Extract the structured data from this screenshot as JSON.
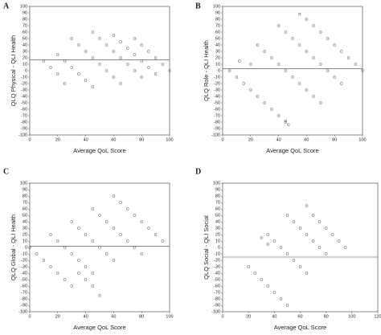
{
  "chart_data": [
    {
      "type": "scatter",
      "panel": "A",
      "x_label": "Average QoL Score",
      "y_label": "QLQ Physical - QLI Health",
      "color": "#777777",
      "reference_line": 17,
      "xlim": [
        0,
        100
      ],
      "ylim": [
        -100,
        100
      ],
      "xticks": [
        0,
        20,
        40,
        60,
        80,
        100
      ],
      "yticks": [
        -100,
        -90,
        -80,
        -70,
        -60,
        -50,
        -40,
        -30,
        -20,
        -10,
        0,
        10,
        20,
        30,
        40,
        50,
        60,
        70,
        80,
        90,
        100
      ],
      "x": [
        75,
        80,
        85,
        90,
        95,
        100,
        60,
        65,
        70,
        75,
        80,
        85,
        90,
        45,
        50,
        55,
        60,
        65,
        70,
        75,
        80,
        30,
        35,
        40,
        45,
        50,
        55,
        60,
        65,
        20,
        25,
        30,
        35,
        40,
        45,
        10,
        15,
        20,
        25
      ],
      "y": [
        50,
        40,
        30,
        20,
        10,
        0,
        55,
        45,
        35,
        25,
        15,
        5,
        -5,
        60,
        50,
        40,
        30,
        20,
        10,
        0,
        -10,
        50,
        40,
        30,
        20,
        10,
        0,
        -10,
        -20,
        25,
        15,
        5,
        -5,
        -15,
        -25,
        15,
        5,
        -5,
        -20
      ]
    },
    {
      "type": "scatter",
      "panel": "B",
      "x_label": "Average QoL Score",
      "y_label": "QLQ Role - QLI Health",
      "color": "#777777",
      "reference_line": 3,
      "xlim": [
        0,
        100
      ],
      "ylim": [
        -100,
        100
      ],
      "xticks": [
        0,
        20,
        40,
        60,
        80,
        100
      ],
      "yticks": [
        -100,
        -90,
        -80,
        -70,
        -60,
        -50,
        -40,
        -30,
        -20,
        -10,
        0,
        10,
        20,
        30,
        40,
        50,
        60,
        70,
        80,
        90,
        100
      ],
      "x": [
        55,
        60,
        65,
        70,
        75,
        80,
        85,
        90,
        95,
        100,
        40,
        45,
        50,
        55,
        60,
        65,
        70,
        75,
        80,
        85,
        25,
        30,
        35,
        40,
        45,
        50,
        55,
        60,
        65,
        70,
        5,
        10,
        15,
        20,
        25,
        30,
        35,
        40,
        45,
        12,
        20,
        45,
        47
      ],
      "y": [
        88,
        80,
        70,
        60,
        50,
        40,
        30,
        20,
        10,
        0,
        70,
        60,
        50,
        40,
        30,
        20,
        10,
        0,
        -10,
        -20,
        40,
        30,
        20,
        10,
        0,
        -10,
        -20,
        -30,
        -40,
        -50,
        0,
        -10,
        -20,
        -30,
        -40,
        -50,
        -60,
        -70,
        -80,
        15,
        10,
        -78,
        -84
      ]
    },
    {
      "type": "scatter",
      "panel": "C",
      "x_label": "Average QoL Score",
      "y_label": "QLQ Global - QLI Health",
      "color": "#777777",
      "reference_line": 2,
      "xlim": [
        0,
        100
      ],
      "ylim": [
        -100,
        100
      ],
      "xticks": [
        0,
        20,
        40,
        60,
        80,
        100
      ],
      "yticks": [
        -100,
        -90,
        -80,
        -70,
        -60,
        -50,
        -40,
        -30,
        -20,
        -10,
        0,
        10,
        20,
        30,
        40,
        50,
        60,
        70,
        80,
        90,
        100
      ],
      "x": [
        0,
        5,
        10,
        15,
        20,
        25,
        30,
        15,
        20,
        25,
        30,
        35,
        40,
        45,
        30,
        35,
        40,
        45,
        50,
        55,
        60,
        45,
        50,
        55,
        60,
        65,
        70,
        75,
        80,
        60,
        65,
        70,
        75,
        80,
        85,
        90,
        95,
        35,
        40,
        45,
        50
      ],
      "y": [
        0,
        -10,
        -20,
        -30,
        -40,
        -50,
        -60,
        20,
        10,
        0,
        -10,
        -20,
        -30,
        -40,
        40,
        30,
        20,
        10,
        0,
        -10,
        -20,
        60,
        50,
        40,
        30,
        20,
        10,
        0,
        -10,
        80,
        70,
        60,
        50,
        40,
        30,
        20,
        10,
        -40,
        -50,
        -60,
        -75
      ]
    },
    {
      "type": "scatter",
      "panel": "D",
      "x_label": "Average QoL Score",
      "y_label": "QLQ Social - QLI Social",
      "color": "#777777",
      "reference_line": -15,
      "xlim": [
        0,
        120
      ],
      "ylim": [
        -100,
        100
      ],
      "xticks": [
        0,
        20,
        40,
        60,
        80,
        100,
        120
      ],
      "yticks": [
        -100,
        -90,
        -80,
        -70,
        -60,
        -50,
        -40,
        -30,
        -20,
        -10,
        0,
        10,
        20,
        30,
        40,
        50,
        60,
        70,
        80,
        90,
        100
      ],
      "x": [
        65,
        70,
        75,
        80,
        85,
        90,
        95,
        50,
        55,
        60,
        65,
        70,
        75,
        80,
        35,
        40,
        45,
        50,
        55,
        60,
        65,
        20,
        25,
        30,
        35,
        40,
        45,
        50,
        30,
        35
      ],
      "y": [
        65,
        50,
        40,
        30,
        20,
        10,
        0,
        50,
        40,
        30,
        20,
        10,
        0,
        -10,
        20,
        10,
        0,
        -10,
        -20,
        -30,
        -40,
        -30,
        -40,
        -50,
        -60,
        -70,
        -80,
        -90,
        15,
        5
      ]
    }
  ]
}
